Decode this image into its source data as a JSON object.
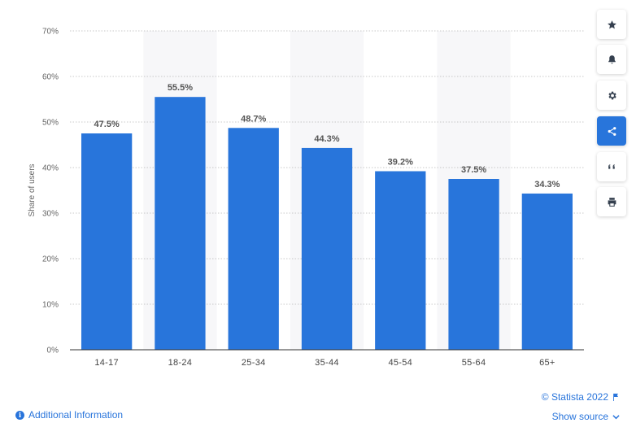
{
  "chart_data": {
    "type": "bar",
    "categories": [
      "14-17",
      "18-24",
      "25-34",
      "35-44",
      "45-54",
      "55-64",
      "65+"
    ],
    "values": [
      47.5,
      55.5,
      48.7,
      44.3,
      39.2,
      37.5,
      34.3
    ],
    "value_labels": [
      "47.5%",
      "55.5%",
      "48.7%",
      "44.3%",
      "39.2%",
      "37.5%",
      "34.3%"
    ],
    "ylabel": "Share of users",
    "xlabel": "",
    "ylim": [
      0,
      70
    ],
    "yticks": [
      0,
      10,
      20,
      30,
      40,
      50,
      60,
      70
    ],
    "ytick_labels": [
      "0%",
      "10%",
      "20%",
      "30%",
      "40%",
      "50%",
      "60%",
      "70%"
    ],
    "grid": true,
    "bar_color": "#2875DB",
    "band_color": "#F7F7F9"
  },
  "sidebar": {
    "buttons": [
      {
        "name": "star-icon",
        "active": false
      },
      {
        "name": "bell-icon",
        "active": false
      },
      {
        "name": "gear-icon",
        "active": false
      },
      {
        "name": "share-icon",
        "active": true
      },
      {
        "name": "quote-icon",
        "active": false
      },
      {
        "name": "print-icon",
        "active": false
      }
    ]
  },
  "footer": {
    "copyright": "© Statista 2022",
    "additional_info": "Additional Information",
    "show_source": "Show source"
  }
}
